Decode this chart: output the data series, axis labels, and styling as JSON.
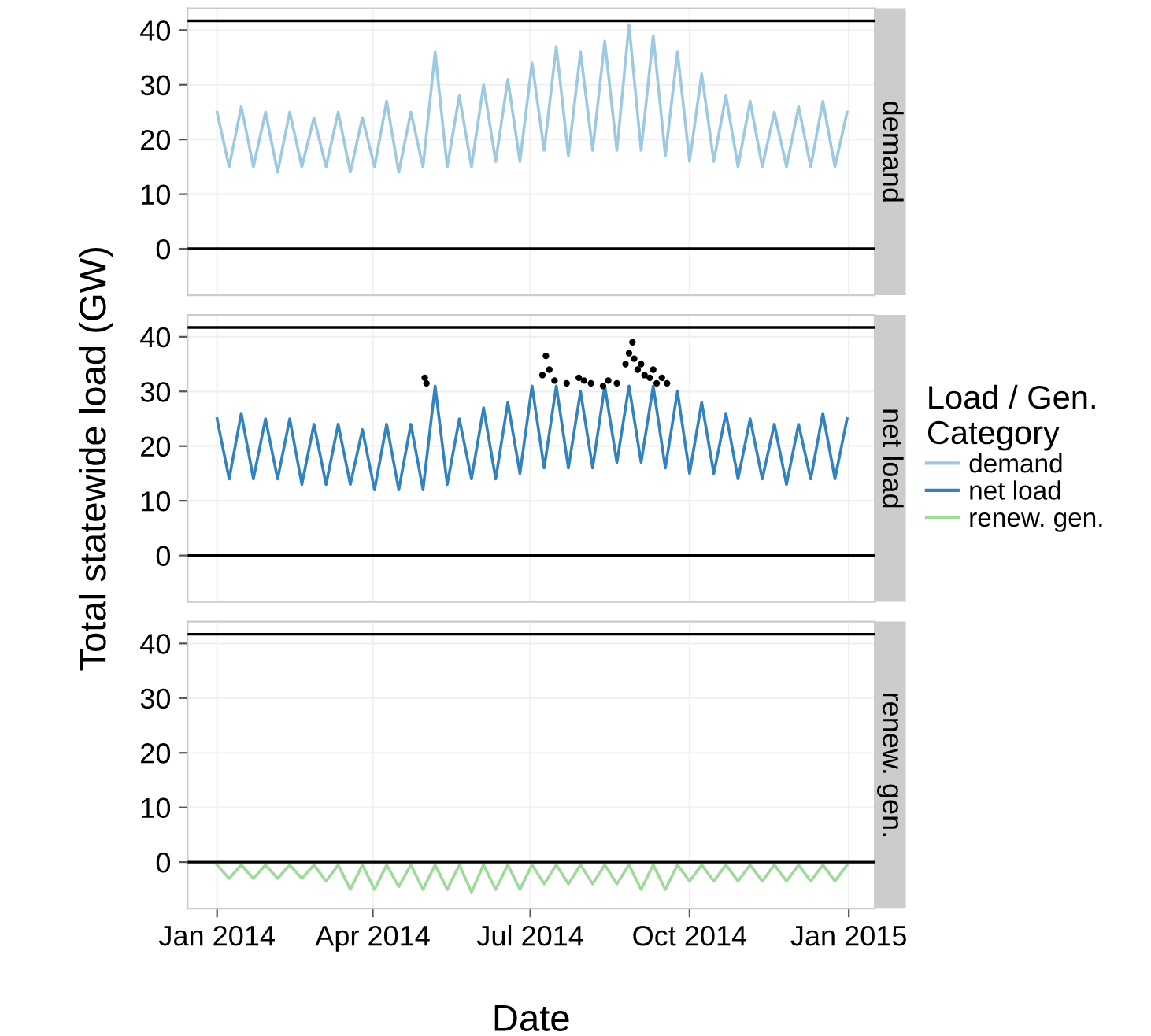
{
  "chart_data": [
    {
      "type": "line",
      "title": "demand",
      "x": [
        "2014-01-01",
        "2014-01-08",
        "2014-01-15",
        "2014-01-22",
        "2014-01-29",
        "2014-02-05",
        "2014-02-12",
        "2014-02-19",
        "2014-02-26",
        "2014-03-05",
        "2014-03-12",
        "2014-03-19",
        "2014-03-26",
        "2014-04-02",
        "2014-04-09",
        "2014-04-16",
        "2014-04-23",
        "2014-04-30",
        "2014-05-07",
        "2014-05-14",
        "2014-05-21",
        "2014-05-28",
        "2014-06-04",
        "2014-06-11",
        "2014-06-18",
        "2014-06-25",
        "2014-07-02",
        "2014-07-09",
        "2014-07-16",
        "2014-07-23",
        "2014-07-30",
        "2014-08-06",
        "2014-08-13",
        "2014-08-20",
        "2014-08-27",
        "2014-09-03",
        "2014-09-10",
        "2014-09-17",
        "2014-09-24",
        "2014-10-01",
        "2014-10-08",
        "2014-10-15",
        "2014-10-22",
        "2014-10-29",
        "2014-11-05",
        "2014-11-12",
        "2014-11-19",
        "2014-11-26",
        "2014-12-03",
        "2014-12-10",
        "2014-12-17",
        "2014-12-24",
        "2014-12-31"
      ],
      "series": [
        {
          "name": "demand",
          "color": "#9ecae1",
          "values": [
            25,
            15,
            26,
            15,
            25,
            14,
            25,
            15,
            24,
            15,
            25,
            14,
            24,
            15,
            27,
            14,
            25,
            15,
            36,
            15,
            28,
            15,
            30,
            16,
            31,
            16,
            34,
            18,
            37,
            17,
            36,
            18,
            38,
            18,
            41,
            18,
            39,
            17,
            36,
            16,
            32,
            16,
            28,
            15,
            27,
            15,
            25,
            15,
            26,
            15,
            27,
            15,
            25
          ]
        }
      ],
      "xlim": [
        "2013-12-15",
        "2015-01-16"
      ],
      "xticks": [
        {
          "value": "2014-01-01",
          "label": null
        },
        {
          "value": "2014-04-01",
          "label": null
        },
        {
          "value": "2014-07-01",
          "label": null
        },
        {
          "value": "2014-10-01",
          "label": null
        },
        {
          "value": "2015-01-01",
          "label": null
        }
      ],
      "ylim": [
        -8.5,
        44
      ],
      "yticks": [
        0,
        10,
        20,
        30,
        40
      ],
      "tick_labels": "y",
      "grid": true,
      "legend": "right",
      "ref_lines": [
        {
          "axis": "y",
          "value": 0,
          "color": "#000000"
        },
        {
          "axis": "y",
          "value": 41.7,
          "color": "#000000"
        }
      ]
    },
    {
      "type": "line",
      "title": "net load",
      "ylabel": "Total statewide load (GW)",
      "legend_title": "Load / Gen. Category",
      "x": [
        "2014-01-01",
        "2014-01-08",
        "2014-01-15",
        "2014-01-22",
        "2014-01-29",
        "2014-02-05",
        "2014-02-12",
        "2014-02-19",
        "2014-02-26",
        "2014-03-05",
        "2014-03-12",
        "2014-03-19",
        "2014-03-26",
        "2014-04-02",
        "2014-04-09",
        "2014-04-16",
        "2014-04-23",
        "2014-04-30",
        "2014-05-07",
        "2014-05-14",
        "2014-05-21",
        "2014-05-28",
        "2014-06-04",
        "2014-06-11",
        "2014-06-18",
        "2014-06-25",
        "2014-07-02",
        "2014-07-09",
        "2014-07-16",
        "2014-07-23",
        "2014-07-30",
        "2014-08-06",
        "2014-08-13",
        "2014-08-20",
        "2014-08-27",
        "2014-09-03",
        "2014-09-10",
        "2014-09-17",
        "2014-09-24",
        "2014-10-01",
        "2014-10-08",
        "2014-10-15",
        "2014-10-22",
        "2014-10-29",
        "2014-11-05",
        "2014-11-12",
        "2014-11-19",
        "2014-11-26",
        "2014-12-03",
        "2014-12-10",
        "2014-12-17",
        "2014-12-24",
        "2014-12-31"
      ],
      "series": [
        {
          "name": "net load",
          "color": "#3182bd",
          "values": [
            25,
            14,
            26,
            14,
            25,
            14,
            25,
            13,
            24,
            13,
            24,
            13,
            23,
            12,
            24,
            12,
            24,
            12,
            31,
            13,
            25,
            14,
            27,
            14,
            28,
            15,
            31,
            16,
            31,
            16,
            30,
            16,
            31,
            17,
            31,
            17,
            31,
            16,
            30,
            15,
            28,
            15,
            26,
            14,
            25,
            14,
            24,
            13,
            24,
            14,
            26,
            14,
            25
          ]
        },
        {
          "type": "scatter",
          "color": "#000000",
          "marker": "circle",
          "x": [
            "2014-05-01",
            "2014-05-02",
            "2014-07-08",
            "2014-07-10",
            "2014-07-12",
            "2014-07-15",
            "2014-07-22",
            "2014-07-29",
            "2014-08-01",
            "2014-08-05",
            "2014-08-12",
            "2014-08-15",
            "2014-08-20",
            "2014-08-25",
            "2014-08-27",
            "2014-08-29",
            "2014-08-30",
            "2014-09-01",
            "2014-09-03",
            "2014-09-05",
            "2014-09-08",
            "2014-09-10",
            "2014-09-12",
            "2014-09-15",
            "2014-09-18"
          ],
          "values": [
            32.5,
            31.5,
            33,
            36.5,
            34,
            32,
            31.5,
            32.5,
            32,
            31.5,
            31,
            32,
            31.5,
            35,
            37,
            39,
            36,
            34,
            35,
            33,
            32.5,
            34,
            31.5,
            32.5,
            31.5
          ]
        }
      ],
      "xlim": [
        "2013-12-15",
        "2015-01-16"
      ],
      "xticks": [
        {
          "value": "2014-01-01",
          "label": null
        },
        {
          "value": "2014-04-01",
          "label": null
        },
        {
          "value": "2014-07-01",
          "label": null
        },
        {
          "value": "2014-10-01",
          "label": null
        },
        {
          "value": "2015-01-01",
          "label": null
        }
      ],
      "ylim": [
        -8.5,
        44
      ],
      "yticks": [
        0,
        10,
        20,
        30,
        40
      ],
      "tick_labels": "y",
      "grid": true,
      "legend": "right",
      "ref_lines": [
        {
          "axis": "y",
          "value": 0,
          "color": "#000000"
        },
        {
          "axis": "y",
          "value": 41.7,
          "color": "#000000"
        }
      ]
    },
    {
      "type": "line",
      "title": "renew. gen.",
      "xlabel": "Date",
      "x": [
        "2014-01-01",
        "2014-01-08",
        "2014-01-15",
        "2014-01-22",
        "2014-01-29",
        "2014-02-05",
        "2014-02-12",
        "2014-02-19",
        "2014-02-26",
        "2014-03-05",
        "2014-03-12",
        "2014-03-19",
        "2014-03-26",
        "2014-04-02",
        "2014-04-09",
        "2014-04-16",
        "2014-04-23",
        "2014-04-30",
        "2014-05-07",
        "2014-05-14",
        "2014-05-21",
        "2014-05-28",
        "2014-06-04",
        "2014-06-11",
        "2014-06-18",
        "2014-06-25",
        "2014-07-02",
        "2014-07-09",
        "2014-07-16",
        "2014-07-23",
        "2014-07-30",
        "2014-08-06",
        "2014-08-13",
        "2014-08-20",
        "2014-08-27",
        "2014-09-03",
        "2014-09-10",
        "2014-09-17",
        "2014-09-24",
        "2014-10-01",
        "2014-10-08",
        "2014-10-15",
        "2014-10-22",
        "2014-10-29",
        "2014-11-05",
        "2014-11-12",
        "2014-11-19",
        "2014-11-26",
        "2014-12-03",
        "2014-12-10",
        "2014-12-17",
        "2014-12-24",
        "2014-12-31"
      ],
      "series": [
        {
          "name": "renew. gen.",
          "color": "#a1d99b",
          "values": [
            -0.5,
            -3,
            -0.5,
            -3,
            -0.5,
            -3,
            -0.5,
            -3,
            -0.5,
            -3.5,
            -0.5,
            -5,
            -0.5,
            -5,
            -0.5,
            -4.5,
            -0.5,
            -5,
            -0.5,
            -5,
            -0.5,
            -5.5,
            -0.5,
            -5,
            -0.5,
            -5,
            -0.5,
            -4,
            -0.5,
            -4,
            -0.5,
            -4,
            -0.5,
            -4,
            -0.5,
            -5,
            -0.5,
            -5,
            -0.5,
            -3.5,
            -0.5,
            -3.5,
            -0.5,
            -3.5,
            -0.5,
            -3.5,
            -0.5,
            -3.5,
            -0.5,
            -3.5,
            -0.5,
            -3.5,
            -0.5
          ]
        }
      ],
      "xlim": [
        "2013-12-15",
        "2015-01-16"
      ],
      "xticks": [
        {
          "value": "2014-01-01",
          "label": "Jan 2014"
        },
        {
          "value": "2014-04-01",
          "label": "Apr 2014"
        },
        {
          "value": "2014-07-01",
          "label": "Jul 2014"
        },
        {
          "value": "2014-10-01",
          "label": "Oct 2014"
        },
        {
          "value": "2015-01-01",
          "label": "Jan 2015"
        }
      ],
      "ylim": [
        -8.5,
        44
      ],
      "yticks": [
        0,
        10,
        20,
        30,
        40
      ],
      "grid": true,
      "legend": "right",
      "ref_lines": [
        {
          "axis": "y",
          "value": 0,
          "color": "#000000"
        },
        {
          "axis": "y",
          "value": 41.7,
          "color": "#000000"
        }
      ]
    }
  ]
}
